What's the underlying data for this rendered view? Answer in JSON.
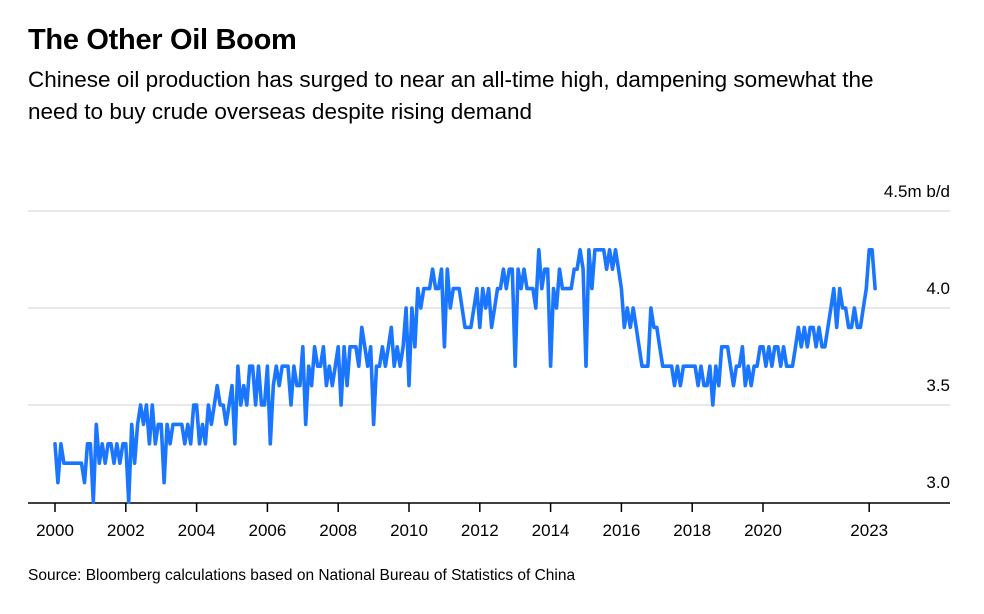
{
  "title": "The Other Oil Boom",
  "subtitle": "Chinese oil production has surged to near an all-time high, dampening somewhat the need to buy crude overseas despite rising demand",
  "source": "Source: Bloomberg calculations based on National Bureau of Statistics of China",
  "colors": {
    "line": "#1a75ff",
    "grid": "#e8e8e8",
    "axis": "#000000"
  },
  "chart_data": {
    "type": "line",
    "title": "The Other Oil Boom",
    "xlabel": "",
    "ylabel": "m b/d",
    "frequency": "monthly",
    "start": "2000-01",
    "xlim": [
      2000,
      2025.2
    ],
    "ylim": [
      3.0,
      4.5
    ],
    "yticks": [
      {
        "value": 3.0,
        "label": "3.0"
      },
      {
        "value": 3.5,
        "label": "3.5"
      },
      {
        "value": 4.0,
        "label": "4.0"
      },
      {
        "value": 4.5,
        "label": "4.5m b/d"
      }
    ],
    "xticks": [
      {
        "value": 2000,
        "label": "2000"
      },
      {
        "value": 2002,
        "label": "2002"
      },
      {
        "value": 2004,
        "label": "2004"
      },
      {
        "value": 2006,
        "label": "2006"
      },
      {
        "value": 2008,
        "label": "2008"
      },
      {
        "value": 2010,
        "label": "2010"
      },
      {
        "value": 2012,
        "label": "2012"
      },
      {
        "value": 2014,
        "label": "2014"
      },
      {
        "value": 2016,
        "label": "2016"
      },
      {
        "value": 2018,
        "label": "2018"
      },
      {
        "value": 2020,
        "label": "2020"
      },
      {
        "value": 2023,
        "label": "2023"
      }
    ],
    "grid": true,
    "series": [
      {
        "name": "Chinese oil production",
        "values": [
          3.3,
          3.1,
          3.3,
          3.2,
          3.2,
          3.2,
          3.2,
          3.2,
          3.2,
          3.2,
          3.1,
          3.3,
          3.3,
          3.0,
          3.4,
          3.2,
          3.3,
          3.2,
          3.3,
          3.3,
          3.2,
          3.3,
          3.2,
          3.3,
          3.3,
          3.0,
          3.4,
          3.2,
          3.4,
          3.5,
          3.4,
          3.5,
          3.3,
          3.5,
          3.3,
          3.4,
          3.4,
          3.1,
          3.4,
          3.3,
          3.4,
          3.4,
          3.4,
          3.4,
          3.3,
          3.4,
          3.3,
          3.5,
          3.5,
          3.3,
          3.4,
          3.3,
          3.5,
          3.4,
          3.5,
          3.6,
          3.5,
          3.5,
          3.4,
          3.5,
          3.6,
          3.3,
          3.7,
          3.5,
          3.6,
          3.5,
          3.7,
          3.7,
          3.5,
          3.7,
          3.5,
          3.5,
          3.7,
          3.3,
          3.6,
          3.7,
          3.6,
          3.7,
          3.7,
          3.7,
          3.5,
          3.7,
          3.6,
          3.6,
          3.8,
          3.4,
          3.7,
          3.6,
          3.8,
          3.7,
          3.7,
          3.8,
          3.6,
          3.7,
          3.6,
          3.7,
          3.8,
          3.5,
          3.8,
          3.6,
          3.8,
          3.8,
          3.8,
          3.7,
          3.9,
          3.8,
          3.7,
          3.8,
          3.4,
          3.7,
          3.7,
          3.8,
          3.7,
          3.8,
          3.9,
          3.7,
          3.8,
          3.7,
          3.8,
          4.0,
          3.6,
          4.0,
          3.8,
          4.1,
          4.0,
          4.1,
          4.1,
          4.1,
          4.2,
          4.1,
          4.1,
          4.2,
          3.8,
          4.2,
          4.0,
          4.1,
          4.1,
          4.1,
          4.0,
          3.9,
          3.9,
          3.9,
          4.0,
          4.1,
          3.9,
          4.1,
          4.0,
          4.1,
          3.9,
          4.0,
          4.1,
          4.1,
          4.2,
          4.1,
          4.2,
          4.2,
          3.7,
          4.2,
          4.1,
          4.2,
          4.1,
          4.1,
          4.1,
          4.0,
          4.3,
          4.1,
          4.2,
          4.2,
          3.7,
          4.1,
          4.0,
          4.2,
          4.1,
          4.1,
          4.1,
          4.1,
          4.2,
          4.2,
          4.3,
          4.2,
          3.7,
          4.3,
          4.1,
          4.3,
          4.3,
          4.3,
          4.3,
          4.2,
          4.3,
          4.2,
          4.3,
          4.2,
          4.1,
          3.9,
          4.0,
          3.9,
          4.0,
          3.9,
          3.8,
          3.7,
          3.7,
          3.7,
          4.0,
          3.9,
          3.9,
          3.8,
          3.7,
          3.7,
          3.7,
          3.7,
          3.6,
          3.7,
          3.6,
          3.7,
          3.7,
          3.7,
          3.7,
          3.7,
          3.6,
          3.7,
          3.6,
          3.6,
          3.7,
          3.5,
          3.7,
          3.6,
          3.8,
          3.8,
          3.8,
          3.7,
          3.6,
          3.7,
          3.7,
          3.8,
          3.6,
          3.7,
          3.6,
          3.7,
          3.7,
          3.8,
          3.8,
          3.7,
          3.8,
          3.7,
          3.8,
          3.8,
          3.7,
          3.8,
          3.7,
          3.7,
          3.7,
          3.8,
          3.9,
          3.8,
          3.9,
          3.8,
          3.9,
          3.9,
          3.8,
          3.9,
          3.8,
          3.8,
          3.9,
          4.0,
          4.1,
          3.9,
          4.1,
          4.0,
          4.0,
          3.9,
          3.9,
          4.0,
          3.9,
          3.9,
          4.0,
          4.1,
          4.3,
          4.3,
          4.1
        ]
      }
    ]
  }
}
